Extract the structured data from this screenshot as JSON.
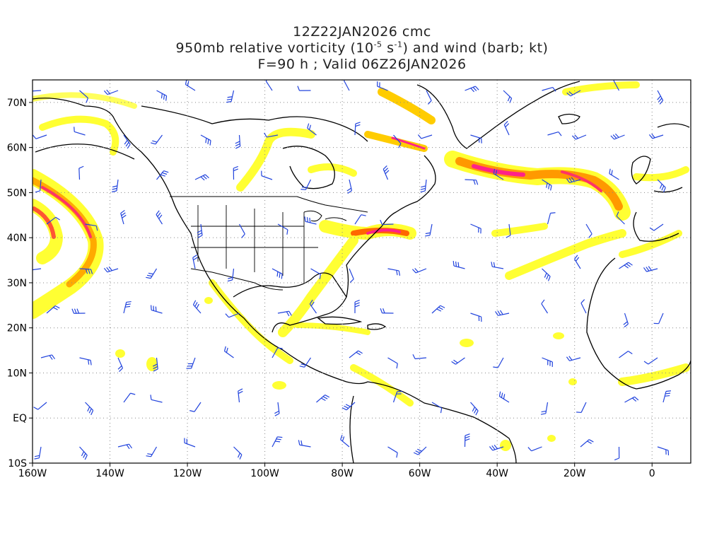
{
  "title": {
    "line1": "12Z22JAN2026 cmc",
    "line2_prefix": "950mb relative vorticity (10",
    "line2_exp1": "-5",
    "line2_mid": " s",
    "line2_exp2": "-1",
    "line2_suffix": ") and wind (barb; kt)",
    "line3": "F=90 h ; Valid 06Z26JAN2026"
  },
  "axes": {
    "lon_labels": [
      "160W",
      "140W",
      "120W",
      "100W",
      "80W",
      "60W",
      "40W",
      "20W",
      "0"
    ],
    "lat_labels": [
      "70N",
      "60N",
      "50N",
      "40N",
      "30N",
      "20N",
      "10N",
      "EQ",
      "10S"
    ],
    "lon_values": [
      -160,
      -140,
      -120,
      -100,
      -80,
      -60,
      -40,
      -20,
      0
    ],
    "lat_values": [
      70,
      60,
      50,
      40,
      30,
      20,
      10,
      0,
      -10
    ],
    "lon_range": [
      -160,
      10
    ],
    "lat_range": [
      -10,
      75
    ],
    "grid": "dotted"
  },
  "colors": {
    "vort_low": "#ffff33",
    "vort_mid": "#ffcc00",
    "vort_high": "#ff8800",
    "vort_max": "#ff2288",
    "barb": "#2244dd",
    "coast": "#000000"
  }
}
